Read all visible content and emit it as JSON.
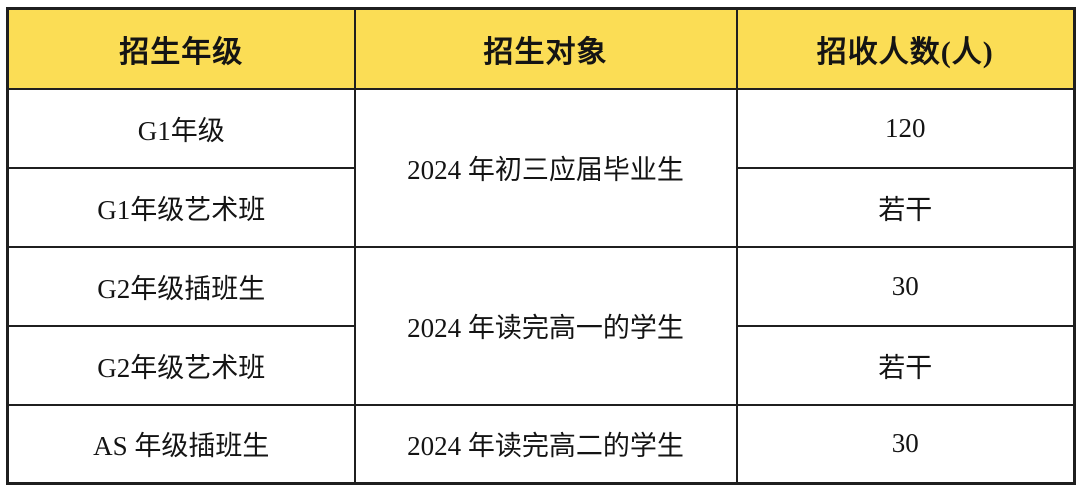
{
  "table": {
    "name": "enrollment-plan-table",
    "header": {
      "grade": "招生年级",
      "target": "招生对象",
      "count": "招收人数(人)"
    },
    "rows": [
      {
        "grade": "G1年级",
        "target": "2024 年初三应届毕业生",
        "count": "120"
      },
      {
        "grade": "G1年级艺术班",
        "count": "若干"
      },
      {
        "grade": "G2年级插班生",
        "target": "2024 年读完高一的学生",
        "count": "30"
      },
      {
        "grade": "G2年级艺术班",
        "count": "若干"
      },
      {
        "grade": "AS 年级插班生",
        "target": "2024 年读完高二的学生",
        "count": "30"
      }
    ],
    "colors": {
      "header_bg": "#FBDD55",
      "border": "#1f1f1f",
      "text": "#141414"
    }
  }
}
